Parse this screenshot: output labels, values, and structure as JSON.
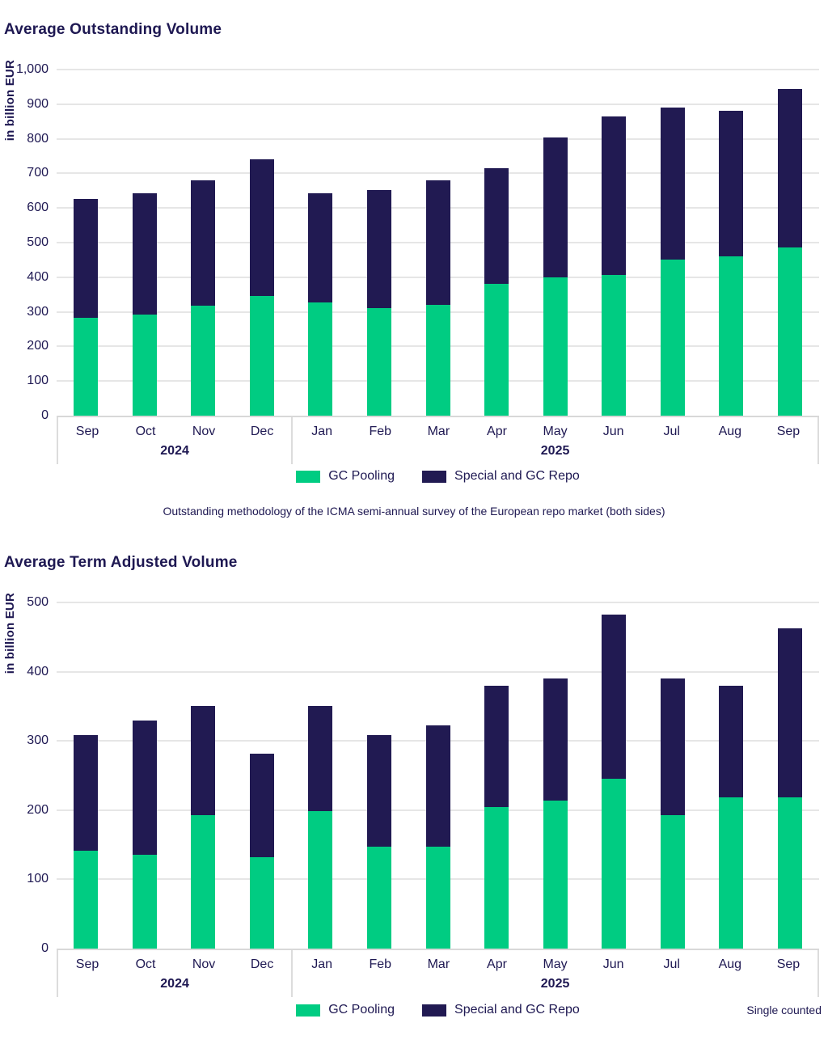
{
  "colors": {
    "gc_pooling_green": "#00cc82",
    "special_repo_navy": "#211a52",
    "text_navy": "#1e1852",
    "gridline_gray": "#e6e6e6",
    "axis_gray": "#d8d8d8"
  },
  "chart_data": [
    {
      "type": "bar",
      "subtype": "stacked",
      "title": "Average Outstanding Volume",
      "ylabel": "in billion EUR",
      "ylim": [
        0,
        1000
      ],
      "ytick_labels": [
        "0",
        "100",
        "200",
        "300",
        "400",
        "500",
        "600",
        "700",
        "800",
        "900",
        "1,000"
      ],
      "grid": "horizontal",
      "categories": [
        "Sep",
        "Oct",
        "Nov",
        "Dec",
        "Jan",
        "Feb",
        "Mar",
        "Apr",
        "May",
        "Jun",
        "Jul",
        "Aug",
        "Sep"
      ],
      "year_groups": [
        {
          "label": "2024",
          "span": 4
        },
        {
          "label": "2025",
          "span": 9
        }
      ],
      "series": [
        {
          "name": "GC Pooling",
          "color": "#00cc82",
          "values": [
            283,
            293,
            318,
            345,
            328,
            310,
            320,
            380,
            400,
            407,
            451,
            461,
            487
          ]
        },
        {
          "name": "Special and GC Repo",
          "color": "#211a52",
          "values": [
            343,
            350,
            362,
            395,
            315,
            343,
            359,
            335,
            403,
            457,
            440,
            421,
            457
          ]
        }
      ],
      "totals": [
        626,
        643,
        680,
        740,
        643,
        653,
        679,
        715,
        803,
        864,
        891,
        882,
        944
      ],
      "legend_position": "bottom-center",
      "footnote": "Outstanding methodology of the ICMA semi-annual survey of the European repo market (both sides)"
    },
    {
      "type": "bar",
      "subtype": "stacked",
      "title": "Average Term Adjusted Volume",
      "ylabel": "in billion EUR",
      "ylim": [
        0,
        500
      ],
      "ytick_labels": [
        "0",
        "100",
        "200",
        "300",
        "400",
        "500"
      ],
      "grid": "horizontal",
      "categories": [
        "Sep",
        "Oct",
        "Nov",
        "Dec",
        "Jan",
        "Feb",
        "Mar",
        "Apr",
        "May",
        "Jun",
        "Jul",
        "Aug",
        "Sep"
      ],
      "year_groups": [
        {
          "label": "2024",
          "span": 4
        },
        {
          "label": "2025",
          "span": 9
        }
      ],
      "series": [
        {
          "name": "GC Pooling",
          "color": "#00cc82",
          "values": [
            141,
            136,
            193,
            132,
            199,
            147,
            147,
            204,
            214,
            245,
            193,
            219,
            219
          ]
        },
        {
          "name": "Special and GC Repo",
          "color": "#211a52",
          "values": [
            167,
            193,
            157,
            150,
            151,
            161,
            175,
            176,
            176,
            238,
            197,
            161,
            244
          ]
        }
      ],
      "totals": [
        308,
        329,
        350,
        282,
        350,
        308,
        322,
        380,
        390,
        483,
        390,
        380,
        463
      ],
      "legend_position": "bottom-center",
      "note": "Single counted"
    }
  ]
}
